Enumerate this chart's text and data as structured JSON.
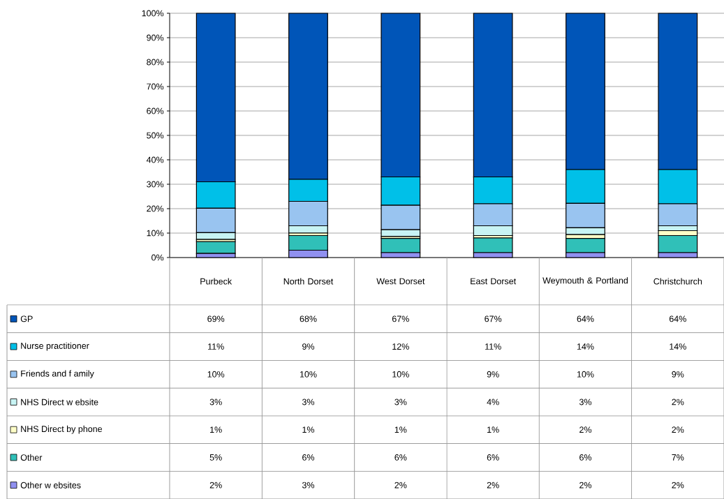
{
  "chart_data": {
    "type": "bar",
    "stacked": true,
    "categories": [
      "Purbeck",
      "North Dorset",
      "West Dorset",
      "East Dorset",
      "Weymouth & Portland",
      "Christchurch"
    ],
    "series": [
      {
        "name": "Other w ebsites",
        "color": "#9090f0",
        "values": [
          1.7,
          3,
          2,
          2,
          2,
          2
        ],
        "value_labels": [
          "2%",
          "3%",
          "2%",
          "2%",
          "2%",
          "2%"
        ]
      },
      {
        "name": "Other",
        "color": "#30c0b8",
        "values": [
          4.8,
          6,
          5.8,
          6,
          5.8,
          7
        ],
        "value_labels": [
          "5%",
          "6%",
          "6%",
          "6%",
          "6%",
          "7%"
        ]
      },
      {
        "name": "NHS Direct by phone",
        "color": "#ffffc8",
        "values": [
          0.9,
          1,
          0.8,
          1,
          1.6,
          2
        ],
        "value_labels": [
          "1%",
          "1%",
          "1%",
          "1%",
          "2%",
          "2%"
        ]
      },
      {
        "name": "NHS Direct w ebsite",
        "color": "#c8f4f4",
        "values": [
          2.8,
          3,
          2.8,
          4,
          2.8,
          2
        ],
        "value_labels": [
          "3%",
          "3%",
          "3%",
          "4%",
          "3%",
          "2%"
        ]
      },
      {
        "name": "Friends and f amily",
        "color": "#99c4f0",
        "values": [
          10,
          10,
          10,
          9,
          10,
          9
        ],
        "value_labels": [
          "10%",
          "10%",
          "10%",
          "9%",
          "10%",
          "9%"
        ]
      },
      {
        "name": "Nurse practitioner",
        "color": "#00c0e8",
        "values": [
          10.8,
          9,
          11.6,
          11,
          13.8,
          14
        ],
        "value_labels": [
          "11%",
          "9%",
          "12%",
          "11%",
          "14%",
          "14%"
        ]
      },
      {
        "name": "GP",
        "color": "#0055b8",
        "values": [
          69,
          68,
          67,
          67,
          64,
          64
        ],
        "value_labels": [
          "69%",
          "68%",
          "67%",
          "67%",
          "64%",
          "64%"
        ]
      }
    ],
    "ylim": [
      0,
      100
    ],
    "yticks": [
      {
        "value": 0,
        "label": "0%"
      },
      {
        "value": 10,
        "label": "10%"
      },
      {
        "value": 20,
        "label": "20%"
      },
      {
        "value": 30,
        "label": "30%"
      },
      {
        "value": 40,
        "label": "40%"
      },
      {
        "value": 50,
        "label": "50%"
      },
      {
        "value": 60,
        "label": "60%"
      },
      {
        "value": 70,
        "label": "70%"
      },
      {
        "value": 80,
        "label": "80%"
      },
      {
        "value": 90,
        "label": "90%"
      },
      {
        "value": 100,
        "label": "100%"
      }
    ],
    "grid": "y",
    "legend": "bottom"
  }
}
